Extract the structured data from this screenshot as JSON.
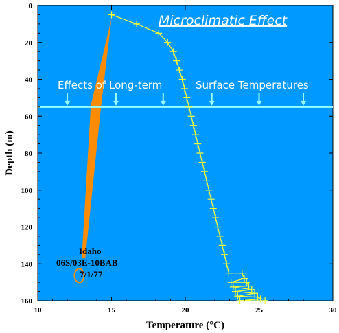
{
  "colors": {
    "plot_background": "#0099ff",
    "series_line": "#ffff33",
    "banner_line": "#99ffff",
    "arrow_fill": "#ff8c00",
    "site_circle": "#ff8c00",
    "text": "#000000",
    "title_text": "#ffffff"
  },
  "chart_data": {
    "type": "line",
    "title": "Microclimatic Effect",
    "xlabel": "Temperature (°C)",
    "ylabel": "Depth (m)",
    "xlim": [
      10,
      30
    ],
    "ylim": [
      0,
      160
    ],
    "y_inverted": true,
    "x_ticks": [
      "10",
      "15",
      "20",
      "25",
      "30"
    ],
    "y_ticks": [
      "0",
      "20",
      "40",
      "60",
      "80",
      "100",
      "120",
      "140",
      "160"
    ],
    "grid": false,
    "series": [
      {
        "x": [
          15.0,
          16.7,
          18.2,
          18.8,
          19.2,
          19.4,
          19.6,
          19.8,
          19.95,
          20.1,
          20.25,
          20.4,
          20.55,
          20.7,
          20.85,
          21.0,
          21.15,
          21.3,
          21.45,
          21.6,
          21.75,
          21.9,
          22.05,
          22.2,
          22.35,
          22.5,
          22.65,
          22.8,
          22.95,
          23.1,
          23.25,
          23.4,
          23.55,
          23.7,
          23.85,
          24.0,
          24.15,
          24.3,
          24.5,
          24.7,
          24.9,
          25.1,
          25.4
        ],
        "y": [
          5,
          10,
          15,
          20,
          25,
          30,
          35,
          40,
          45,
          50,
          55,
          60,
          65,
          70,
          75,
          80,
          85,
          90,
          95,
          100,
          105,
          110,
          115,
          120,
          125,
          130,
          135,
          140,
          145,
          150,
          152.5,
          155,
          157.5,
          160,
          145,
          148,
          150,
          152,
          154,
          156,
          158,
          159,
          160
        ]
      }
    ],
    "banner": {
      "depth": 55,
      "text_left": "Effects of Long-term",
      "text_right": "Surface Temperatures",
      "arrow_x": [
        12,
        15.3,
        18.5,
        21.8,
        25,
        28
      ]
    },
    "site_label": {
      "line1": "Idaho",
      "line2": "06S/03E-10BAB",
      "line3": "7/1/77",
      "marker": {
        "x": 13.0,
        "y": 146
      }
    },
    "wedge": {
      "tip": {
        "x": 15.0,
        "y": 7
      },
      "top_left": {
        "x": 13.6,
        "y": 54
      },
      "top_right": {
        "x": 14.3,
        "y": 54
      },
      "bottom": {
        "x": 13.1,
        "y": 137
      }
    }
  }
}
